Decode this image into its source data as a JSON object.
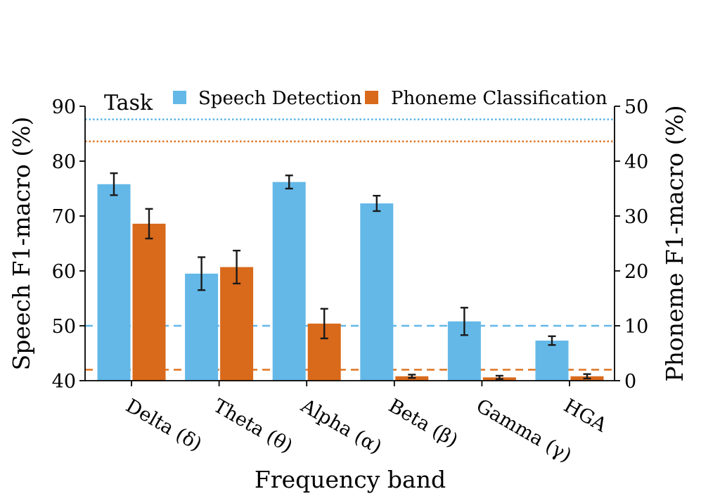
{
  "chart_data": {
    "type": "bar",
    "xlabel": "Frequency band",
    "ylabel_left": "Speech F1-macro (%)",
    "ylabel_right": "Phoneme F1-macro (%)",
    "categories": [
      "Delta (δ)",
      "Theta (θ)",
      "Alpha (α)",
      "Beta (β)",
      "Gamma (γ)",
      "HGA"
    ],
    "left_axis": {
      "ylim": [
        40,
        90
      ],
      "ticks": [
        40,
        50,
        60,
        70,
        80,
        90
      ]
    },
    "right_axis": {
      "ylim": [
        0,
        50
      ],
      "ticks": [
        0,
        10,
        20,
        30,
        40,
        50
      ]
    },
    "legend": {
      "title": "Task",
      "placement": "top",
      "entries": [
        "Speech Detection",
        "Phoneme Classification"
      ]
    },
    "series": [
      {
        "name": "Speech Detection",
        "axis": "left",
        "color": "#63b8e8",
        "values": [
          75.8,
          59.5,
          76.2,
          72.3,
          50.8,
          47.3
        ],
        "errors": [
          2.0,
          3.0,
          1.2,
          1.4,
          2.5,
          0.8
        ]
      },
      {
        "name": "Phoneme Classification",
        "axis": "right",
        "color": "#d9691b",
        "values": [
          28.6,
          20.7,
          10.4,
          0.8,
          0.6,
          0.8
        ],
        "errors": [
          2.7,
          3.0,
          2.7,
          0.3,
          0.3,
          0.4
        ]
      }
    ],
    "reference_lines": [
      {
        "axis": "left",
        "value": 87.6,
        "style": "dotted",
        "color": "#63b8e8"
      },
      {
        "axis": "right",
        "value": 43.6,
        "style": "dotted",
        "color": "#e07a2a"
      },
      {
        "axis": "left",
        "value": 50.0,
        "style": "dashed",
        "color": "#63b8e8"
      },
      {
        "axis": "right",
        "value": 2.0,
        "style": "dashed",
        "color": "#e07a2a"
      }
    ]
  }
}
